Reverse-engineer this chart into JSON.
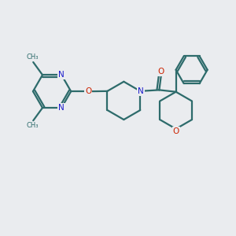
{
  "background_color": "#eaecef",
  "bond_color": "#2d6b6b",
  "N_color": "#1a1acc",
  "O_color": "#cc2200",
  "line_width": 1.6,
  "figsize": [
    3.0,
    3.0
  ],
  "dpi": 100,
  "xlim": [
    0,
    10
  ],
  "ylim": [
    0,
    10
  ]
}
